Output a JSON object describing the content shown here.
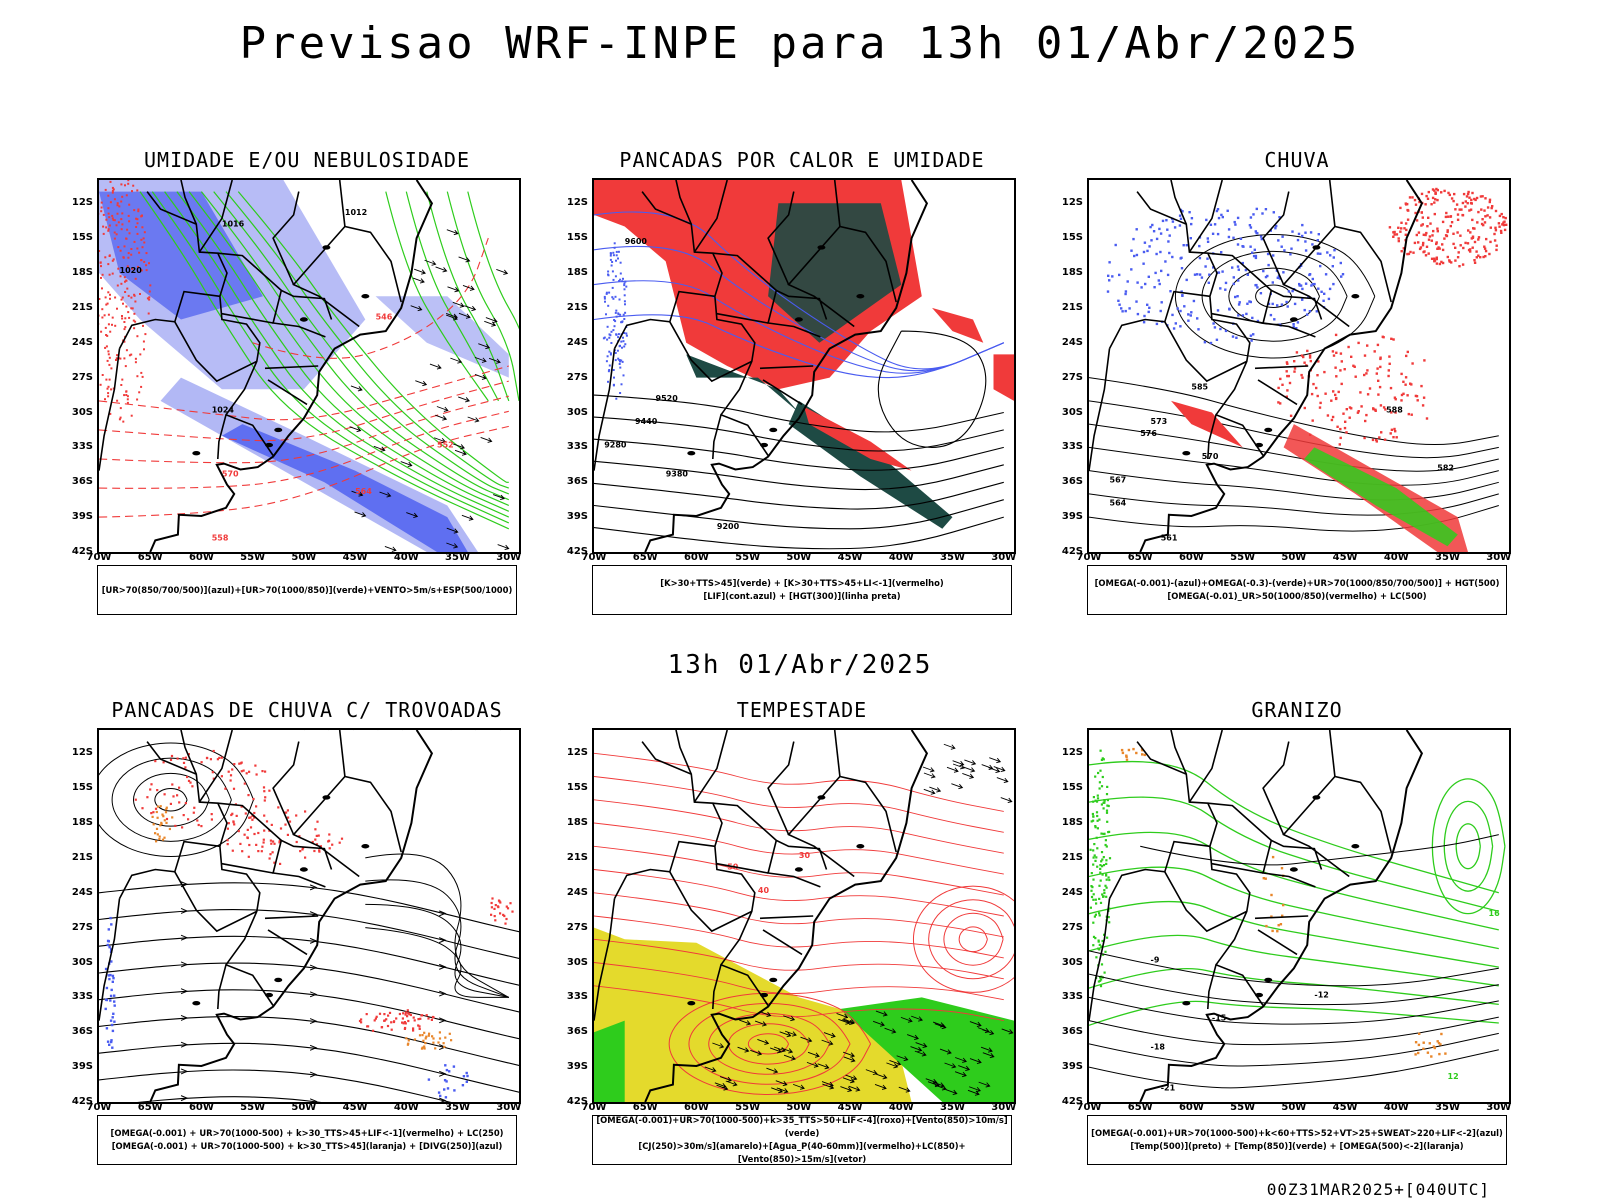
{
  "header": {
    "title": "Previsao WRF-INPE  para 13h 01/Abr/2025"
  },
  "mid_title": "13h 01/Abr/2025",
  "footer": {
    "run_stamp": "00Z31MAR2025+[040UTC]"
  },
  "axes": {
    "lat_labels": [
      "12S",
      "15S",
      "18S",
      "21S",
      "24S",
      "27S",
      "30S",
      "33S",
      "36S",
      "39S",
      "42S"
    ],
    "lon_labels": [
      "70W",
      "65W",
      "60W",
      "55W",
      "50W",
      "45W",
      "40W",
      "35W",
      "30W"
    ]
  },
  "colors": {
    "azul": "#4a5cf0",
    "azul_claro": "#aab0f4",
    "verde": "#2ecc1c",
    "vermelho": "#f03a3a",
    "verde_escuro": "#1e4a44",
    "amarelo": "#e4da2c",
    "laranja": "#e8862a",
    "preto": "#000000"
  },
  "panels": [
    {
      "title": "UMIDADE E/OU NEBULOSIDADE",
      "legend": [
        "[UR>70(850/700/500)](azul)+[UR>70(1000/850)](verde)+VENTO>5m/s+ESP(500/1000)"
      ],
      "labels": [
        "1012",
        "1016",
        "1020",
        "1024",
        "570",
        "564",
        "558",
        "552",
        "546"
      ]
    },
    {
      "title": "PANCADAS POR CALOR E UMIDADE",
      "legend": [
        "[K>30+TTS>45](verde) + [K>30+TTS>45+LI<-1](vermelho)",
        "[LIF](cont.azul) + [HGT(300)](linha preta)"
      ],
      "labels": [
        "9600",
        "9520",
        "9440",
        "9380",
        "9280",
        "9200"
      ]
    },
    {
      "title": "CHUVA",
      "legend": [
        "[OMEGA(-0.001)-(azul)+OMEGA(-0.3)-(verde)+UR>70(1000/850/700/500)] + HGT(500)",
        "[OMEGA(-0.01)_UR>50(1000/850)(vermelho) + LC(500)"
      ],
      "labels": [
        "585",
        "576",
        "573",
        "570",
        "567",
        "564",
        "561",
        "582",
        "588"
      ]
    },
    {
      "title": "PANCADAS DE CHUVA C/ TROVOADAS",
      "legend": [
        "[OMEGA(-0.001) + UR>70(1000-500) + k>30_TTS>45+LIF<-1](vermelho) + LC(250)",
        "[OMEGA(-0.001) + UR>70(1000-500) + k>30_TTS>45](laranja) + [DIVG(250)](azul)"
      ],
      "labels": []
    },
    {
      "title": "TEMPESTADE",
      "legend": [
        "[OMEGA(-0.001)+UR>70(1000-500)+k>35_TTS>50+LIF<-4](roxo)+[Vento(850)>10m/s](verde)",
        "[CJ(250)>30m/s](amarelo)+[Agua_P(40-60mm)](vermelho)+LC(850)+[Vento(850)>15m/s](vetor)"
      ],
      "labels": [
        "50",
        "40",
        "30"
      ]
    },
    {
      "title": "GRANIZO",
      "legend": [
        "[OMEGA(-0.001)+UR>70(1000-500)+k<60+TTS>52+VT>25+SWEAT>220+LIF<-2](azul)",
        "[Temp(500)](preto) + [Temp(850)](verde) + [OMEGA(500)<-2](laranja)"
      ],
      "labels": [
        "-9",
        "-12",
        "-15",
        "-18",
        "-21",
        "16",
        "12"
      ]
    }
  ]
}
